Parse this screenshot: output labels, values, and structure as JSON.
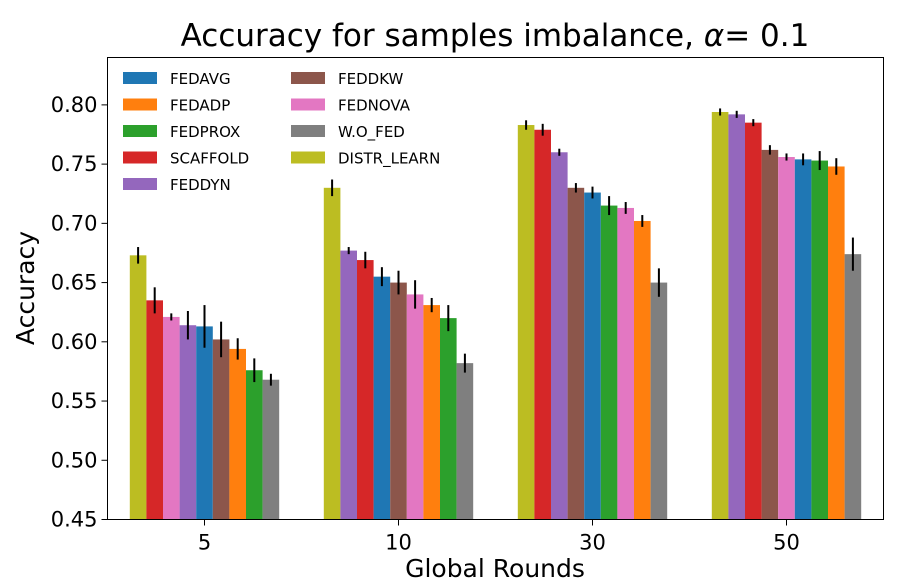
{
  "chart_data": {
    "type": "bar",
    "title": "Accuracy for samples imbalance, ",
    "title_alpha_symbol": "α",
    "title_alpha_value": "= 0.1",
    "xlabel": "Global Rounds",
    "ylabel": "Accuracy",
    "ylim": [
      0.45,
      0.84
    ],
    "yticks": [
      "0.45",
      "0.50",
      "0.55",
      "0.60",
      "0.65",
      "0.70",
      "0.75",
      "0.80"
    ],
    "categories": [
      "5",
      "10",
      "30",
      "50"
    ],
    "legend_location": "top-left",
    "series": [
      {
        "name": "FEDAVG",
        "color": "#1f77b4"
      },
      {
        "name": "FEDADP",
        "color": "#ff7f0e"
      },
      {
        "name": "FEDPROX",
        "color": "#2ca02c"
      },
      {
        "name": "SCAFFOLD",
        "color": "#d62728"
      },
      {
        "name": "FEDDYN",
        "color": "#9467bd"
      },
      {
        "name": "FEDDKW",
        "color": "#8c564b"
      },
      {
        "name": "FEDNOVA",
        "color": "#e377c2"
      },
      {
        "name": "W.O_FED",
        "color": "#7f7f7f"
      },
      {
        "name": "DISTR_LEARN",
        "color": "#bcbd22"
      }
    ],
    "groups": [
      {
        "category": "5",
        "bars": [
          {
            "series": "DISTR_LEARN",
            "value": 0.673,
            "err": 0.007
          },
          {
            "series": "SCAFFOLD",
            "value": 0.635,
            "err": 0.011
          },
          {
            "series": "FEDNOVA",
            "value": 0.621,
            "err": 0.003
          },
          {
            "series": "FEDDYN",
            "value": 0.614,
            "err": 0.012
          },
          {
            "series": "FEDAVG",
            "value": 0.613,
            "err": 0.018
          },
          {
            "series": "FEDDKW",
            "value": 0.602,
            "err": 0.015
          },
          {
            "series": "FEDADP",
            "value": 0.594,
            "err": 0.009
          },
          {
            "series": "FEDPROX",
            "value": 0.576,
            "err": 0.01
          },
          {
            "series": "W.O_FED",
            "value": 0.568,
            "err": 0.005
          }
        ]
      },
      {
        "category": "10",
        "bars": [
          {
            "series": "DISTR_LEARN",
            "value": 0.73,
            "err": 0.007
          },
          {
            "series": "FEDDYN",
            "value": 0.677,
            "err": 0.003
          },
          {
            "series": "SCAFFOLD",
            "value": 0.669,
            "err": 0.007
          },
          {
            "series": "FEDAVG",
            "value": 0.655,
            "err": 0.008
          },
          {
            "series": "FEDDKW",
            "value": 0.65,
            "err": 0.01
          },
          {
            "series": "FEDNOVA",
            "value": 0.64,
            "err": 0.012
          },
          {
            "series": "FEDADP",
            "value": 0.631,
            "err": 0.006
          },
          {
            "series": "FEDPROX",
            "value": 0.62,
            "err": 0.011
          },
          {
            "series": "W.O_FED",
            "value": 0.582,
            "err": 0.008
          }
        ]
      },
      {
        "category": "30",
        "bars": [
          {
            "series": "DISTR_LEARN",
            "value": 0.783,
            "err": 0.004
          },
          {
            "series": "SCAFFOLD",
            "value": 0.779,
            "err": 0.005
          },
          {
            "series": "FEDDYN",
            "value": 0.76,
            "err": 0.003
          },
          {
            "series": "FEDDKW",
            "value": 0.73,
            "err": 0.004
          },
          {
            "series": "FEDAVG",
            "value": 0.726,
            "err": 0.005
          },
          {
            "series": "FEDPROX",
            "value": 0.715,
            "err": 0.008
          },
          {
            "series": "FEDNOVA",
            "value": 0.713,
            "err": 0.005
          },
          {
            "series": "FEDADP",
            "value": 0.702,
            "err": 0.005
          },
          {
            "series": "W.O_FED",
            "value": 0.65,
            "err": 0.012
          }
        ]
      },
      {
        "category": "50",
        "bars": [
          {
            "series": "DISTR_LEARN",
            "value": 0.794,
            "err": 0.003
          },
          {
            "series": "FEDDYN",
            "value": 0.792,
            "err": 0.003
          },
          {
            "series": "SCAFFOLD",
            "value": 0.785,
            "err": 0.003
          },
          {
            "series": "FEDDKW",
            "value": 0.762,
            "err": 0.004
          },
          {
            "series": "FEDNOVA",
            "value": 0.756,
            "err": 0.003
          },
          {
            "series": "FEDAVG",
            "value": 0.754,
            "err": 0.005
          },
          {
            "series": "FEDPROX",
            "value": 0.753,
            "err": 0.008
          },
          {
            "series": "FEDADP",
            "value": 0.748,
            "err": 0.007
          },
          {
            "series": "W.O_FED",
            "value": 0.674,
            "err": 0.014
          }
        ]
      }
    ]
  }
}
